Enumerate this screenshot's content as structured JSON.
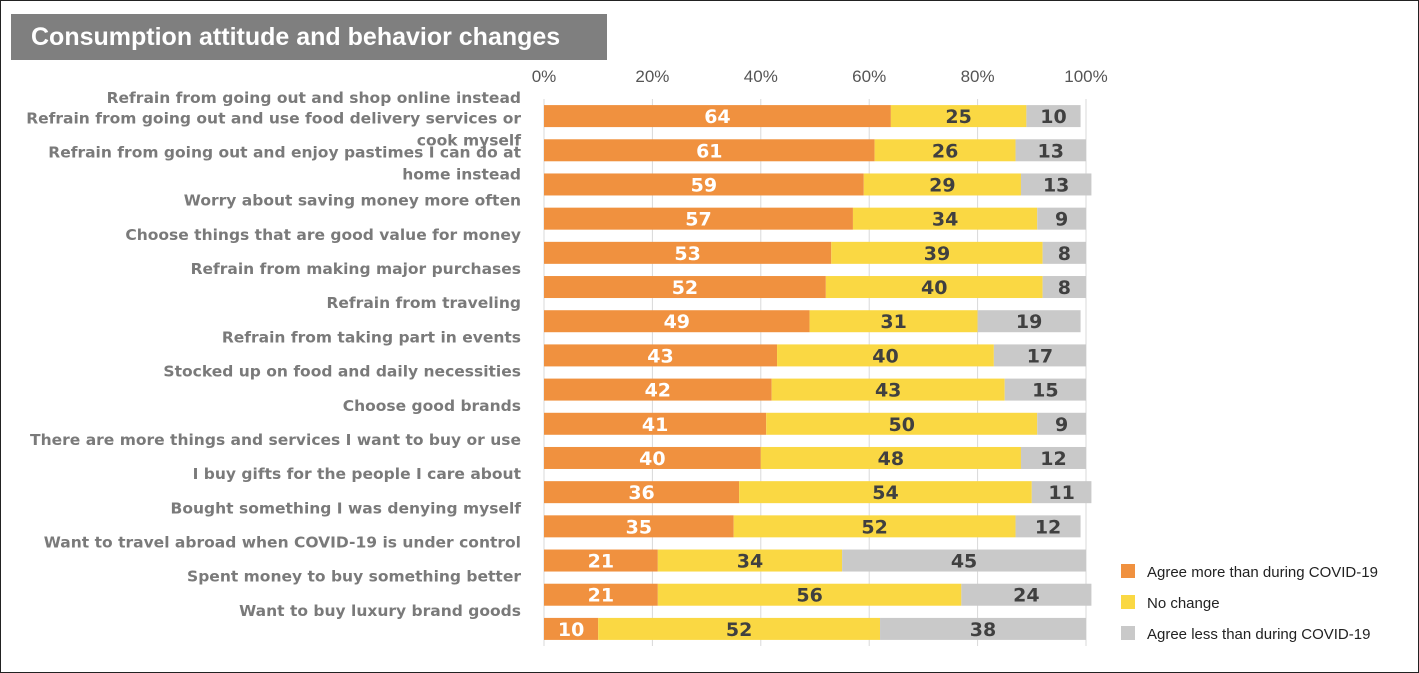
{
  "chart_data": {
    "type": "bar",
    "orientation": "horizontal",
    "stacked": true,
    "title": "Consumption attitude and behavior changes",
    "xlabel": "",
    "ylabel": "",
    "xlim": [
      0,
      100
    ],
    "x_ticks": [
      "0%",
      "20%",
      "40%",
      "60%",
      "80%",
      "100%"
    ],
    "grid": true,
    "legend_position": "bottom-right",
    "categories": [
      "Refrain from going out and shop online instead",
      "Refrain from going out and use food delivery services or cook myself",
      "Refrain from going out and enjoy pastimes I can do at home instead",
      "Worry about saving money more often",
      "Choose things that are good value for money",
      "Refrain from making major purchases",
      "Refrain from traveling",
      "Refrain from taking part in events",
      "Stocked up on food and daily necessities",
      "Choose good brands",
      "There are more things and services I want to buy or use",
      "I buy gifts for the people I care about",
      "Bought something I was denying myself",
      "Want to travel abroad when COVID-19 is under control",
      "Spent money to buy something better",
      "Want to buy luxury brand goods"
    ],
    "category_lines": [
      [
        "Refrain from going out and shop online instead"
      ],
      [
        "Refrain from going out and use food delivery services or",
        "cook myself"
      ],
      [
        "Refrain from going out and enjoy pastimes I can do at",
        "home instead"
      ],
      [
        "Worry about saving money more often"
      ],
      [
        "Choose things that are good value for money"
      ],
      [
        "Refrain from making major purchases"
      ],
      [
        "Refrain from traveling"
      ],
      [
        "Refrain from taking part in events"
      ],
      [
        "Stocked up on food and daily necessities"
      ],
      [
        "Choose good brands"
      ],
      [
        "There are more things and services I want to buy or use"
      ],
      [
        "I buy gifts for the people I care about"
      ],
      [
        "Bought something I was denying myself"
      ],
      [
        "Want to travel abroad when COVID-19 is under control"
      ],
      [
        "Spent money to buy something better"
      ],
      [
        "Want to buy luxury brand goods"
      ]
    ],
    "series": [
      {
        "name": "Agree more than during COVID-19",
        "color": "#f0913f",
        "label_color": "#ffffff",
        "values": [
          64,
          61,
          59,
          57,
          53,
          52,
          49,
          43,
          42,
          41,
          40,
          36,
          35,
          21,
          21,
          10
        ]
      },
      {
        "name": "No change",
        "color": "#fad843",
        "label_color": "#404040",
        "values": [
          25,
          26,
          29,
          34,
          39,
          40,
          31,
          40,
          43,
          50,
          48,
          54,
          52,
          34,
          56,
          52
        ]
      },
      {
        "name": "Agree less than during COVID-19",
        "color": "#c9c9c9",
        "label_color": "#404040",
        "values": [
          10,
          13,
          13,
          9,
          8,
          8,
          19,
          17,
          15,
          9,
          12,
          11,
          12,
          45,
          24,
          38
        ]
      }
    ]
  }
}
